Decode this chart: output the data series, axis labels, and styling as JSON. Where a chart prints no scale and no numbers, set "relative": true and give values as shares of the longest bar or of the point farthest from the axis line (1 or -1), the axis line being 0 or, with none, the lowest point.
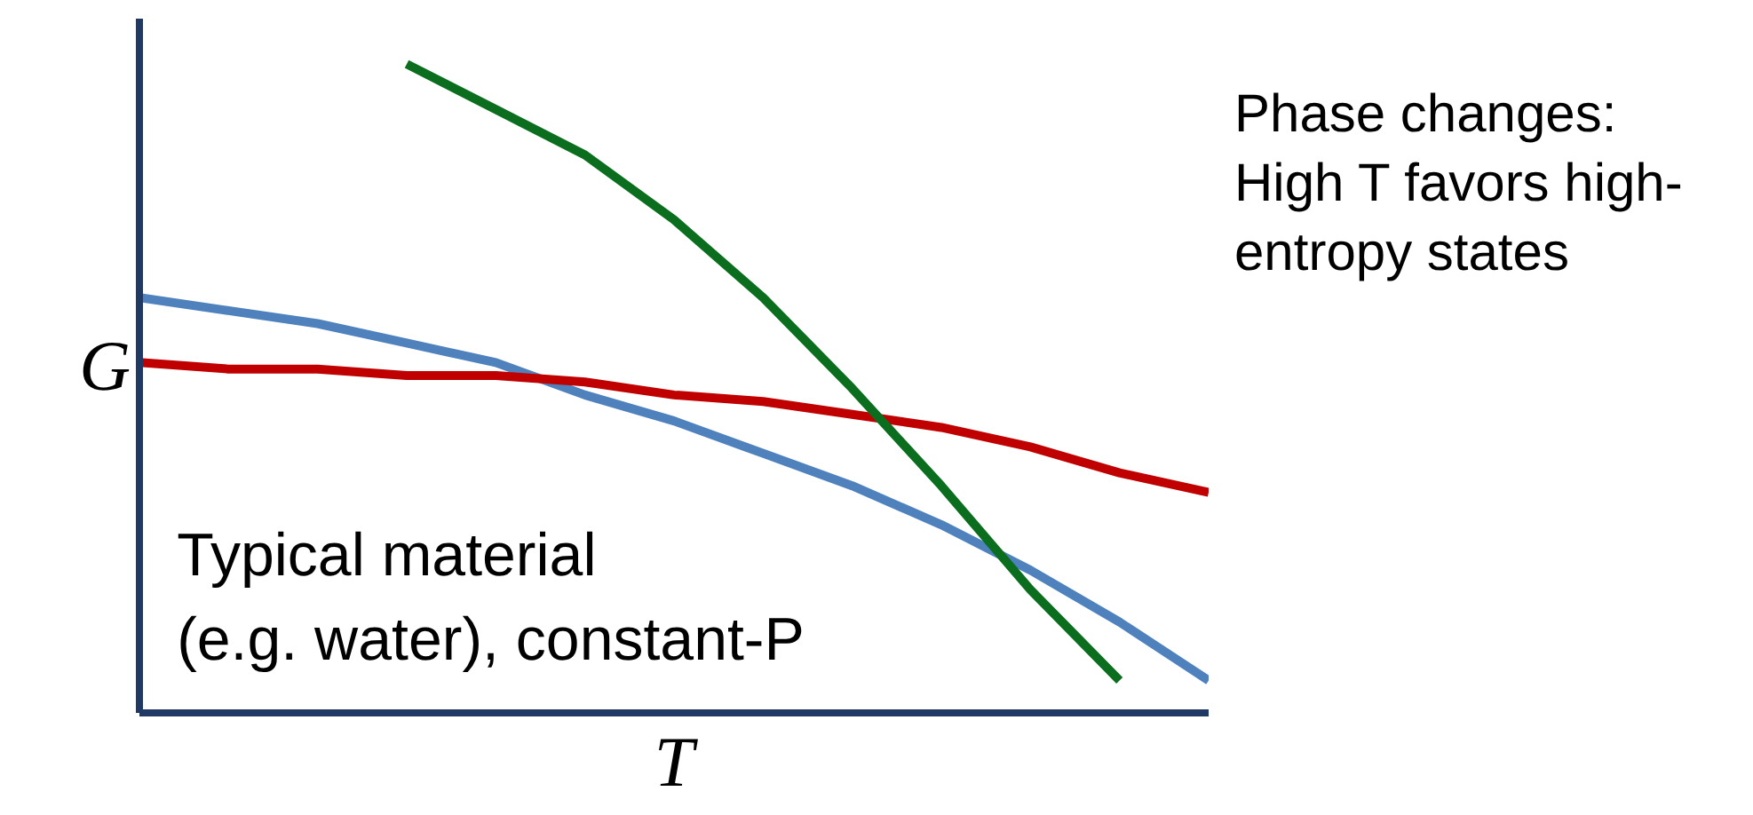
{
  "chart_data": {
    "type": "line",
    "relative": true,
    "xlabel": "T",
    "ylabel": "G",
    "categories": [
      null,
      null,
      null,
      null,
      null,
      null,
      null,
      null,
      null,
      null,
      null,
      null,
      null
    ],
    "series": [
      {
        "color": "#4f81bd",
        "values": [
          0.64,
          0.62,
          0.6,
          0.57,
          0.54,
          0.49,
          0.45,
          0.4,
          0.35,
          0.29,
          0.22,
          0.14,
          0.05
        ]
      },
      {
        "color": "#c00000",
        "values": [
          0.54,
          0.53,
          0.53,
          0.52,
          0.52,
          0.51,
          0.49,
          0.48,
          0.46,
          0.44,
          0.41,
          0.37,
          0.34
        ]
      },
      {
        "color": "#0b6e1f",
        "values": [
          null,
          null,
          null,
          1.0,
          0.93,
          0.86,
          0.76,
          0.64,
          0.5,
          0.35,
          0.19,
          0.05,
          null
        ]
      }
    ],
    "annotations": [
      "Typical material\n(e.g. water), constant-P",
      "Phase changes:\nHigh T favors high-\nentropy states"
    ]
  }
}
